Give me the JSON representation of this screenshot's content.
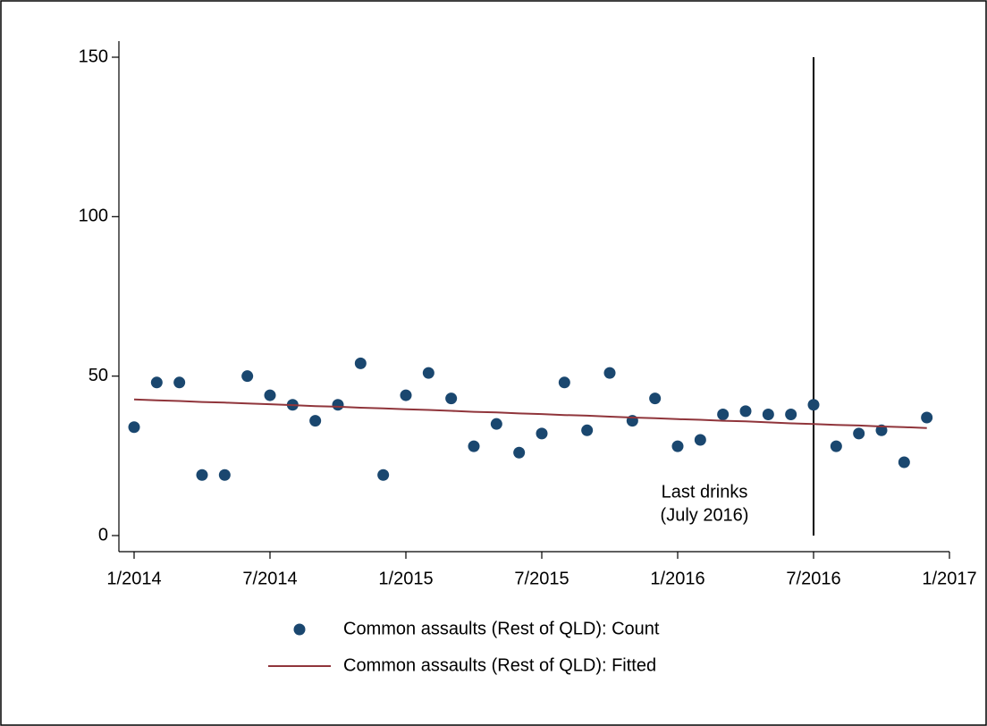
{
  "chart_data": {
    "type": "scatter",
    "x": [
      "1/2014",
      "2/2014",
      "3/2014",
      "4/2014",
      "5/2014",
      "6/2014",
      "7/2014",
      "8/2014",
      "9/2014",
      "10/2014",
      "11/2014",
      "12/2014",
      "1/2015",
      "2/2015",
      "3/2015",
      "4/2015",
      "5/2015",
      "6/2015",
      "7/2015",
      "8/2015",
      "9/2015",
      "10/2015",
      "11/2015",
      "12/2015",
      "1/2016",
      "2/2016",
      "3/2016",
      "4/2016",
      "5/2016",
      "6/2016",
      "7/2016",
      "8/2016",
      "9/2016",
      "10/2016",
      "11/2016",
      "12/2016"
    ],
    "series": [
      {
        "name": "Common assaults (Rest of QLD): Count",
        "type": "scatter",
        "color": "#1a476f",
        "values": [
          34,
          48,
          48,
          19,
          19,
          50,
          44,
          41,
          36,
          41,
          54,
          19,
          44,
          51,
          43,
          28,
          35,
          26,
          32,
          48,
          33,
          51,
          36,
          43,
          28,
          30,
          38,
          39,
          38,
          38,
          41,
          28,
          32,
          33,
          23,
          37
        ]
      },
      {
        "name": "Common assaults (Rest of QLD): Fitted",
        "type": "line",
        "color": "#90353b",
        "values": [
          42.7,
          42.4,
          42.2,
          41.9,
          41.7,
          41.4,
          41.2,
          40.9,
          40.6,
          40.4,
          40.1,
          39.9,
          39.6,
          39.4,
          39.1,
          38.8,
          38.6,
          38.3,
          38.1,
          37.8,
          37.6,
          37.3,
          37.0,
          36.8,
          36.5,
          36.3,
          36.0,
          35.8,
          35.5,
          35.2,
          35.0,
          34.7,
          34.5,
          34.2,
          34.0,
          33.7
        ]
      }
    ],
    "xlim": [
      "1/2014",
      "1/2017"
    ],
    "xticks": [
      "1/2014",
      "7/2014",
      "1/2015",
      "7/2015",
      "1/2016",
      "7/2016",
      "1/2017"
    ],
    "ylim": [
      0,
      150
    ],
    "yticks": [
      0,
      50,
      100,
      150
    ],
    "vline": {
      "x": "7/2016",
      "color": "#000000"
    },
    "annotation": {
      "lines": [
        "Last drinks",
        "(July 2016)"
      ],
      "x": "7/2016"
    },
    "grid": false
  }
}
